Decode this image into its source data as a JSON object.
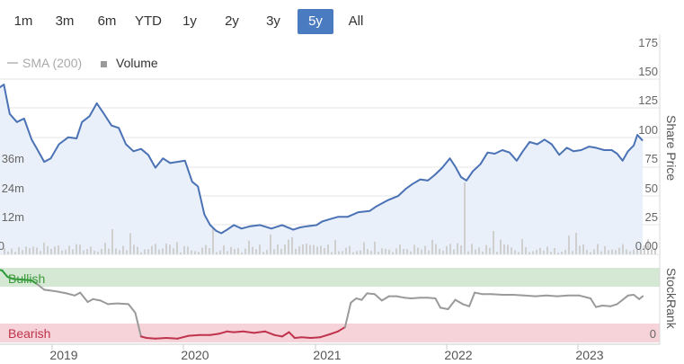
{
  "range_selector": {
    "buttons": [
      "1m",
      "3m",
      "6m",
      "YTD",
      "1y",
      "2y",
      "3y",
      "5y",
      "All"
    ],
    "active": "5y",
    "active_color": "#4a7abf"
  },
  "legend": {
    "sma_label": "SMA (200)",
    "volume_label": "Volume"
  },
  "chart_data": [
    {
      "type": "line",
      "ylabel": "Share Price",
      "ylim": [
        0,
        175
      ],
      "y_ticks": [
        "0.00",
        "25",
        "50",
        "75",
        "100",
        "125",
        "150",
        "175"
      ],
      "volume_ticks": [
        "0",
        "12m",
        "24m",
        "36m"
      ],
      "xlim": [
        "2018-06-01",
        "2023-06-30"
      ],
      "series": [
        {
          "name": "",
          "color": "#4a72b5",
          "points": [
            [
              "2018-06-01",
              128
            ],
            [
              "2018-06-20",
              142
            ],
            [
              "2018-07-10",
              135
            ],
            [
              "2018-08-01",
              141
            ],
            [
              "2018-08-20",
              145
            ],
            [
              "2018-09-05",
              120
            ],
            [
              "2018-09-25",
              113
            ],
            [
              "2018-10-15",
              116
            ],
            [
              "2018-11-05",
              98
            ],
            [
              "2018-11-20",
              90
            ],
            [
              "2018-12-10",
              79
            ],
            [
              "2018-12-28",
              82
            ],
            [
              "2019-01-20",
              94
            ],
            [
              "2019-02-15",
              100
            ],
            [
              "2019-03-10",
              99
            ],
            [
              "2019-03-25",
              113
            ],
            [
              "2019-04-15",
              118
            ],
            [
              "2019-05-05",
              129
            ],
            [
              "2019-05-25",
              120
            ],
            [
              "2019-06-15",
              110
            ],
            [
              "2019-07-05",
              108
            ],
            [
              "2019-07-25",
              94
            ],
            [
              "2019-08-15",
              88
            ],
            [
              "2019-09-05",
              90
            ],
            [
              "2019-09-25",
              85
            ],
            [
              "2019-10-15",
              74
            ],
            [
              "2019-11-05",
              82
            ],
            [
              "2019-11-25",
              78
            ],
            [
              "2019-12-15",
              79
            ],
            [
              "2020-01-05",
              80
            ],
            [
              "2020-01-25",
              62
            ],
            [
              "2020-02-10",
              58
            ],
            [
              "2020-02-28",
              34
            ],
            [
              "2020-03-15",
              25
            ],
            [
              "2020-04-01",
              20
            ],
            [
              "2020-04-15",
              18
            ],
            [
              "2020-05-01",
              21
            ],
            [
              "2020-05-20",
              25
            ],
            [
              "2020-06-10",
              22
            ],
            [
              "2020-07-05",
              24
            ],
            [
              "2020-08-01",
              25
            ],
            [
              "2020-09-01",
              22
            ],
            [
              "2020-10-01",
              25
            ],
            [
              "2020-11-01",
              21
            ],
            [
              "2020-11-20",
              23
            ],
            [
              "2020-12-10",
              24
            ],
            [
              "2021-01-05",
              25
            ],
            [
              "2021-01-20",
              28
            ],
            [
              "2021-02-10",
              30
            ],
            [
              "2021-03-05",
              32
            ],
            [
              "2021-04-01",
              32
            ],
            [
              "2021-05-01",
              36
            ],
            [
              "2021-06-01",
              37
            ],
            [
              "2021-06-20",
              41
            ],
            [
              "2021-07-20",
              46
            ],
            [
              "2021-08-20",
              50
            ],
            [
              "2021-09-10",
              56
            ],
            [
              "2021-09-28",
              60
            ],
            [
              "2021-10-20",
              64
            ],
            [
              "2021-11-10",
              63
            ],
            [
              "2021-11-30",
              68
            ],
            [
              "2021-12-20",
              74
            ],
            [
              "2022-01-10",
              82
            ],
            [
              "2022-01-25",
              75
            ],
            [
              "2022-02-10",
              66
            ],
            [
              "2022-02-25",
              63
            ],
            [
              "2022-03-15",
              71
            ],
            [
              "2022-04-05",
              77
            ],
            [
              "2022-04-25",
              87
            ],
            [
              "2022-05-15",
              86
            ],
            [
              "2022-06-05",
              89
            ],
            [
              "2022-06-25",
              87
            ],
            [
              "2022-07-15",
              80
            ],
            [
              "2022-08-01",
              88
            ],
            [
              "2022-08-20",
              96
            ],
            [
              "2022-09-10",
              94
            ],
            [
              "2022-09-30",
              98
            ],
            [
              "2022-10-20",
              94
            ],
            [
              "2022-11-10",
              85
            ],
            [
              "2022-12-01",
              91
            ],
            [
              "2022-12-20",
              88
            ],
            [
              "2023-01-10",
              89
            ],
            [
              "2023-02-01",
              92
            ],
            [
              "2023-02-20",
              91
            ],
            [
              "2023-03-15",
              89
            ],
            [
              "2023-04-05",
              89
            ],
            [
              "2023-04-20",
              86
            ],
            [
              "2023-05-05",
              80
            ],
            [
              "2023-05-20",
              88
            ],
            [
              "2023-06-05",
              93
            ],
            [
              "2023-06-15",
              102
            ],
            [
              "2023-06-30",
              97
            ]
          ]
        }
      ]
    },
    {
      "type": "line",
      "ylabel": "StockRank",
      "ylim": [
        0,
        100
      ],
      "y_ticks": [
        "0"
      ],
      "x_ticks": [
        "2019",
        "2020",
        "2021",
        "2022",
        "2023"
      ],
      "bands": [
        {
          "label": "Bullish",
          "from": 80,
          "to": 100,
          "color": "#d5e8d4",
          "text_color": "#3a9a3a"
        },
        {
          "label": "Bearish",
          "from": 0,
          "to": 20,
          "color": "#f6d3d8",
          "text_color": "#c0334d"
        }
      ],
      "series": [
        {
          "name": "",
          "colors": {
            "bullish": "#2e9b3a",
            "neutral": "#9a9a9a",
            "bearish": "#c0334d"
          },
          "points": [
            [
              "2018-06-01",
              100
            ],
            [
              "2018-06-20",
              100
            ],
            [
              "2018-07-10",
              100
            ],
            [
              "2018-08-01",
              100
            ],
            [
              "2018-08-15",
              99
            ],
            [
              "2018-08-30",
              90
            ],
            [
              "2018-09-15",
              87
            ],
            [
              "2018-10-15",
              86
            ],
            [
              "2018-11-05",
              85
            ],
            [
              "2018-11-20",
              80
            ],
            [
              "2018-12-10",
              72
            ],
            [
              "2019-01-10",
              70
            ],
            [
              "2019-02-10",
              67
            ],
            [
              "2019-03-05",
              64
            ],
            [
              "2019-03-20",
              68
            ],
            [
              "2019-04-10",
              55
            ],
            [
              "2019-04-25",
              59
            ],
            [
              "2019-05-15",
              57
            ],
            [
              "2019-06-05",
              52
            ],
            [
              "2019-07-01",
              53
            ],
            [
              "2019-08-01",
              52
            ],
            [
              "2019-08-20",
              40
            ],
            [
              "2019-09-05",
              7
            ],
            [
              "2019-09-20",
              5
            ],
            [
              "2019-10-15",
              4
            ],
            [
              "2019-11-15",
              5
            ],
            [
              "2019-12-15",
              4
            ],
            [
              "2020-01-15",
              8
            ],
            [
              "2020-02-15",
              9
            ],
            [
              "2020-03-15",
              9
            ],
            [
              "2020-04-10",
              11
            ],
            [
              "2020-05-01",
              14
            ],
            [
              "2020-05-20",
              13
            ],
            [
              "2020-06-15",
              14
            ],
            [
              "2020-07-15",
              12
            ],
            [
              "2020-08-15",
              14
            ],
            [
              "2020-09-10",
              9
            ],
            [
              "2020-10-01",
              7
            ],
            [
              "2020-10-20",
              13
            ],
            [
              "2020-11-05",
              5
            ],
            [
              "2020-11-25",
              6
            ],
            [
              "2020-12-20",
              5
            ],
            [
              "2021-01-15",
              6
            ],
            [
              "2021-02-10",
              10
            ],
            [
              "2021-03-05",
              14
            ],
            [
              "2021-03-25",
              20
            ],
            [
              "2021-04-10",
              54
            ],
            [
              "2021-04-25",
              60
            ],
            [
              "2021-05-10",
              58
            ],
            [
              "2021-05-25",
              67
            ],
            [
              "2021-06-15",
              66
            ],
            [
              "2021-07-05",
              57
            ],
            [
              "2021-07-25",
              63
            ],
            [
              "2021-08-15",
              63
            ],
            [
              "2021-09-05",
              61
            ],
            [
              "2021-09-25",
              60
            ],
            [
              "2021-10-20",
              61
            ],
            [
              "2021-11-10",
              61
            ],
            [
              "2021-12-01",
              60
            ],
            [
              "2021-12-15",
              47
            ],
            [
              "2022-01-05",
              45
            ],
            [
              "2022-01-25",
              58
            ],
            [
              "2022-02-15",
              52
            ],
            [
              "2022-03-05",
              49
            ],
            [
              "2022-03-20",
              68
            ],
            [
              "2022-04-10",
              66
            ],
            [
              "2022-05-05",
              66
            ],
            [
              "2022-06-05",
              65
            ],
            [
              "2022-07-05",
              65
            ],
            [
              "2022-08-05",
              64
            ],
            [
              "2022-09-05",
              63
            ],
            [
              "2022-10-05",
              64
            ],
            [
              "2022-11-05",
              63
            ],
            [
              "2022-12-05",
              64
            ],
            [
              "2023-01-05",
              64
            ],
            [
              "2023-02-05",
              60
            ],
            [
              "2023-02-20",
              48
            ],
            [
              "2023-03-10",
              50
            ],
            [
              "2023-04-01",
              49
            ],
            [
              "2023-04-20",
              52
            ],
            [
              "2023-05-05",
              58
            ],
            [
              "2023-05-20",
              64
            ],
            [
              "2023-06-05",
              65
            ],
            [
              "2023-06-20",
              59
            ],
            [
              "2023-06-30",
              63
            ]
          ]
        }
      ]
    }
  ]
}
